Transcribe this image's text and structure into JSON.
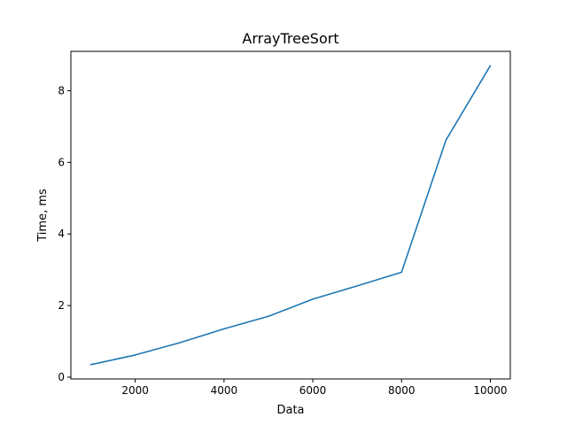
{
  "chart_data": {
    "type": "line",
    "title": "ArrayTreeSort",
    "xlabel": "Data",
    "ylabel": "Time, ms",
    "xlim": [
      550,
      10450
    ],
    "ylim": [
      -0.05,
      9.1
    ],
    "xticks": [
      2000,
      4000,
      6000,
      8000,
      10000
    ],
    "yticks": [
      0,
      2,
      4,
      6,
      8
    ],
    "grid": false,
    "series": [
      {
        "color": "#1f77b4",
        "x": [
          1000,
          2000,
          3000,
          4000,
          5000,
          6000,
          7000,
          8000,
          9000,
          10000
        ],
        "y": [
          0.35,
          0.62,
          0.96,
          1.35,
          1.7,
          2.18,
          2.55,
          2.93,
          6.62,
          8.7
        ]
      }
    ]
  }
}
